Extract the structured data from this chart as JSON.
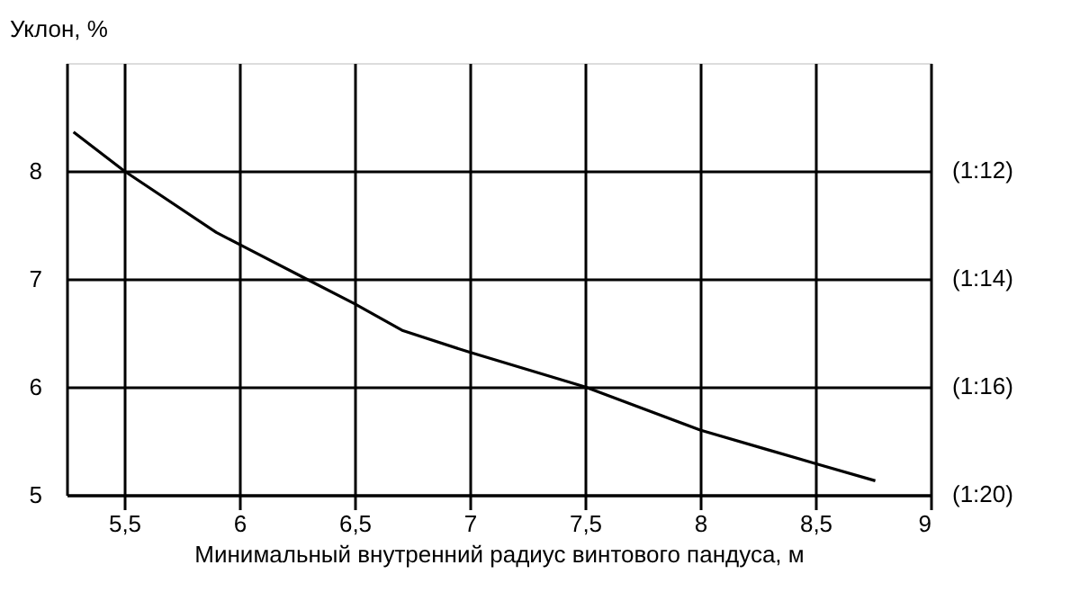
{
  "chart_data": {
    "type": "line",
    "xlabel": "Минимальный внутренний радиус винтового пандуса, м",
    "ylabel": "Уклон, %",
    "x": [
      5.28,
      5.5,
      5.9,
      6.0,
      6.29,
      6.5,
      6.71,
      7.0,
      7.5,
      8.0,
      8.29,
      8.5,
      8.76
    ],
    "series": [
      {
        "color": "#000000",
        "values": [
          8.36,
          8.0,
          7.43,
          7.32,
          7.0,
          6.77,
          6.52,
          6.32,
          6.0,
          5.6,
          5.42,
          5.29,
          5.13
        ]
      }
    ],
    "xlim": [
      5.25,
      9
    ],
    "xticks": [
      {
        "value": 5.5,
        "label": "5,5"
      },
      6,
      {
        "value": 6.5,
        "label": "6,5"
      },
      7,
      {
        "value": 7.5,
        "label": "7,5"
      },
      8,
      {
        "value": 8.5,
        "label": "8,5"
      },
      9
    ],
    "ylim": [
      5,
      9
    ],
    "yticks": [
      5,
      6,
      7,
      8
    ],
    "annotations": [
      "(1:20)",
      "(1:16)",
      "(1:14)",
      "(1:12)"
    ],
    "grid": true,
    "marker": "none",
    "line_style": "solid"
  }
}
